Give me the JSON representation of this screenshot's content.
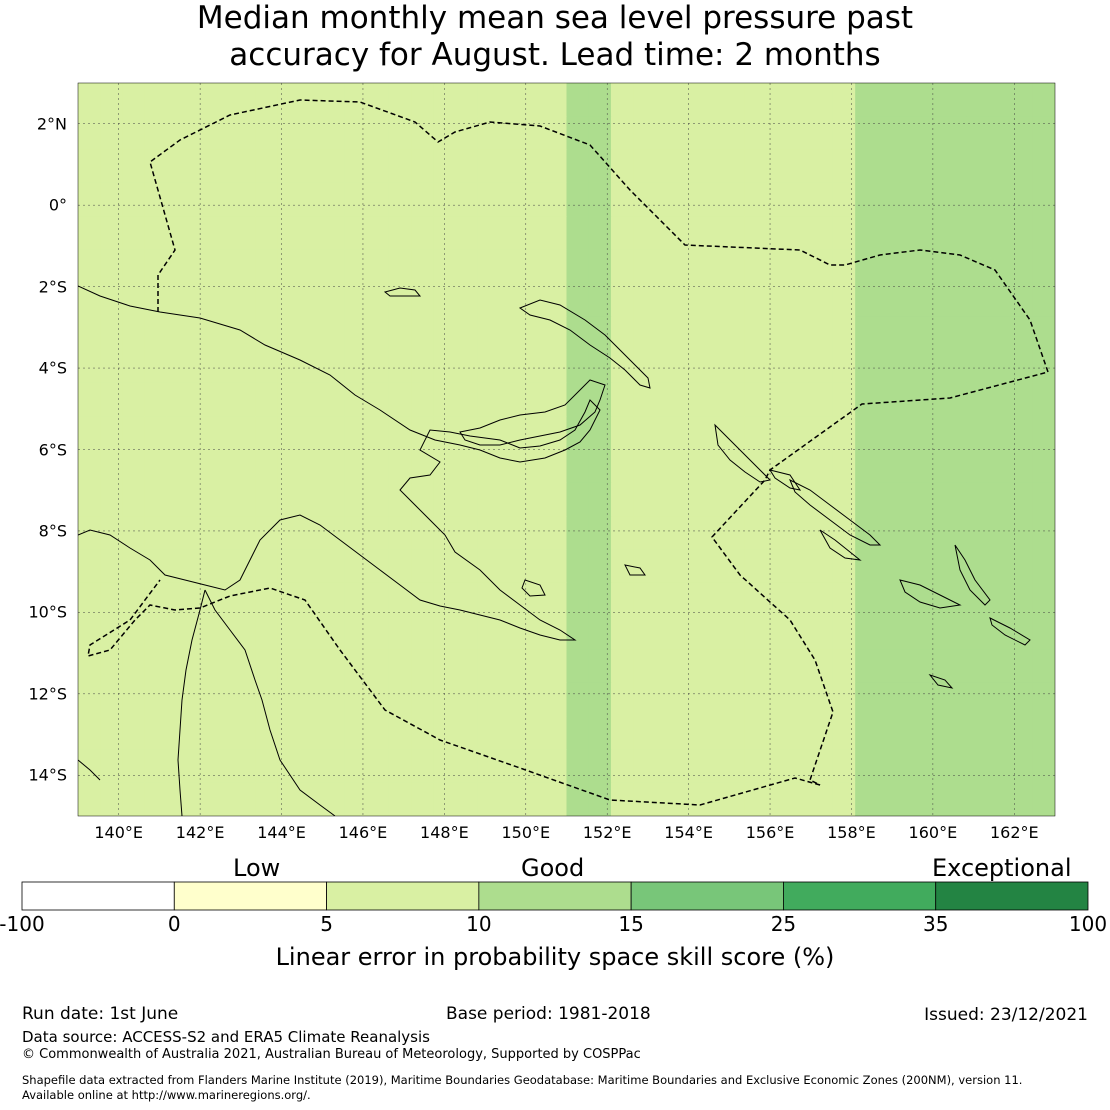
{
  "title": {
    "line1": "Median monthly mean sea level pressure past",
    "line2": "accuracy for August. Lead time: 2 months"
  },
  "map": {
    "lon_labels": [
      "140°E",
      "142°E",
      "144°E",
      "146°E",
      "148°E",
      "150°E",
      "152°E",
      "154°E",
      "156°E",
      "158°E",
      "160°E",
      "162°E"
    ],
    "lat_labels": [
      "2°N",
      "0°",
      "2°S",
      "4°S",
      "6°S",
      "8°S",
      "10°S",
      "12°S",
      "14°S"
    ],
    "extent": {
      "lon_min": 139,
      "lon_max": 163,
      "lat_min": -15,
      "lat_max": 3
    },
    "colors": {
      "0": "#ffffff",
      "1": "#ffffcc",
      "2": "#d9f0a3",
      "3": "#addd8e",
      "4": "#78c679",
      "5": "#41ab5d",
      "6": "#238443"
    },
    "grid": [
      "22222222222222222222223322222222222333333333",
      "22222222222222222222223322222222222333333333",
      "22222222222222222222223322222222222333333333",
      "22222222222222222222223322222222222333333333",
      "22222222222222222222223322222222222333333333",
      "22222222222222222222223322222222222333333333",
      "22222222222222222222223322222222222333333333",
      "22222222222222222222223322222222222333333333",
      "22222222222222222222223322222222222333333333",
      "22222222222222222222223322222222222333333333",
      "22222222222222222222223322222222222333333333",
      "22222222222222222222223322222222222333333333",
      "22222222222222222222223322222222222333333333",
      "22222222222222222222223322222222222333333333",
      "22222222222222222222223322222222222333333333",
      "22222222222222222222223322222222222333333333",
      "22222222222222222222223322222222222333333333",
      "22222222222222222222223322222222222333333333",
      "22222222222222222222223322222222222333333333",
      "22222222222222222222223322222222222333333333",
      "22222222222222222222223322222222222333333333",
      "22222222222222222222223322222222222333333333"
    ]
  },
  "colorbar": {
    "categories": [
      "Low",
      "Good",
      "Exceptional"
    ],
    "ticks": [
      "-100",
      "0",
      "5",
      "10",
      "15",
      "25",
      "35",
      "100"
    ],
    "colors": [
      "#ffffff",
      "#ffffcc",
      "#d9f0a3",
      "#addd8e",
      "#78c679",
      "#41ab5d",
      "#238443"
    ],
    "title": "Linear error in probability space skill score (%)"
  },
  "footer": {
    "run_date": "Run date: 1st June",
    "base_period": "Base period: 1981-2018",
    "issued": "Issued: 23/12/2021",
    "data_source": "Data source: ACCESS-S2 and ERA5 Climate Reanalysis",
    "copyright": "© Commonwealth of Australia 2021, Australian Bureau of Meteorology, Supported by COSPPac",
    "shapefile_line1": "Shapefile data extracted from Flanders Marine Institute (2019), Maritime Boundaries Geodatabase: Maritime Boundaries and Exclusive Economic Zones (200NM), version 11.",
    "shapefile_line2": "Available online at http://www.marineregions.org/."
  }
}
